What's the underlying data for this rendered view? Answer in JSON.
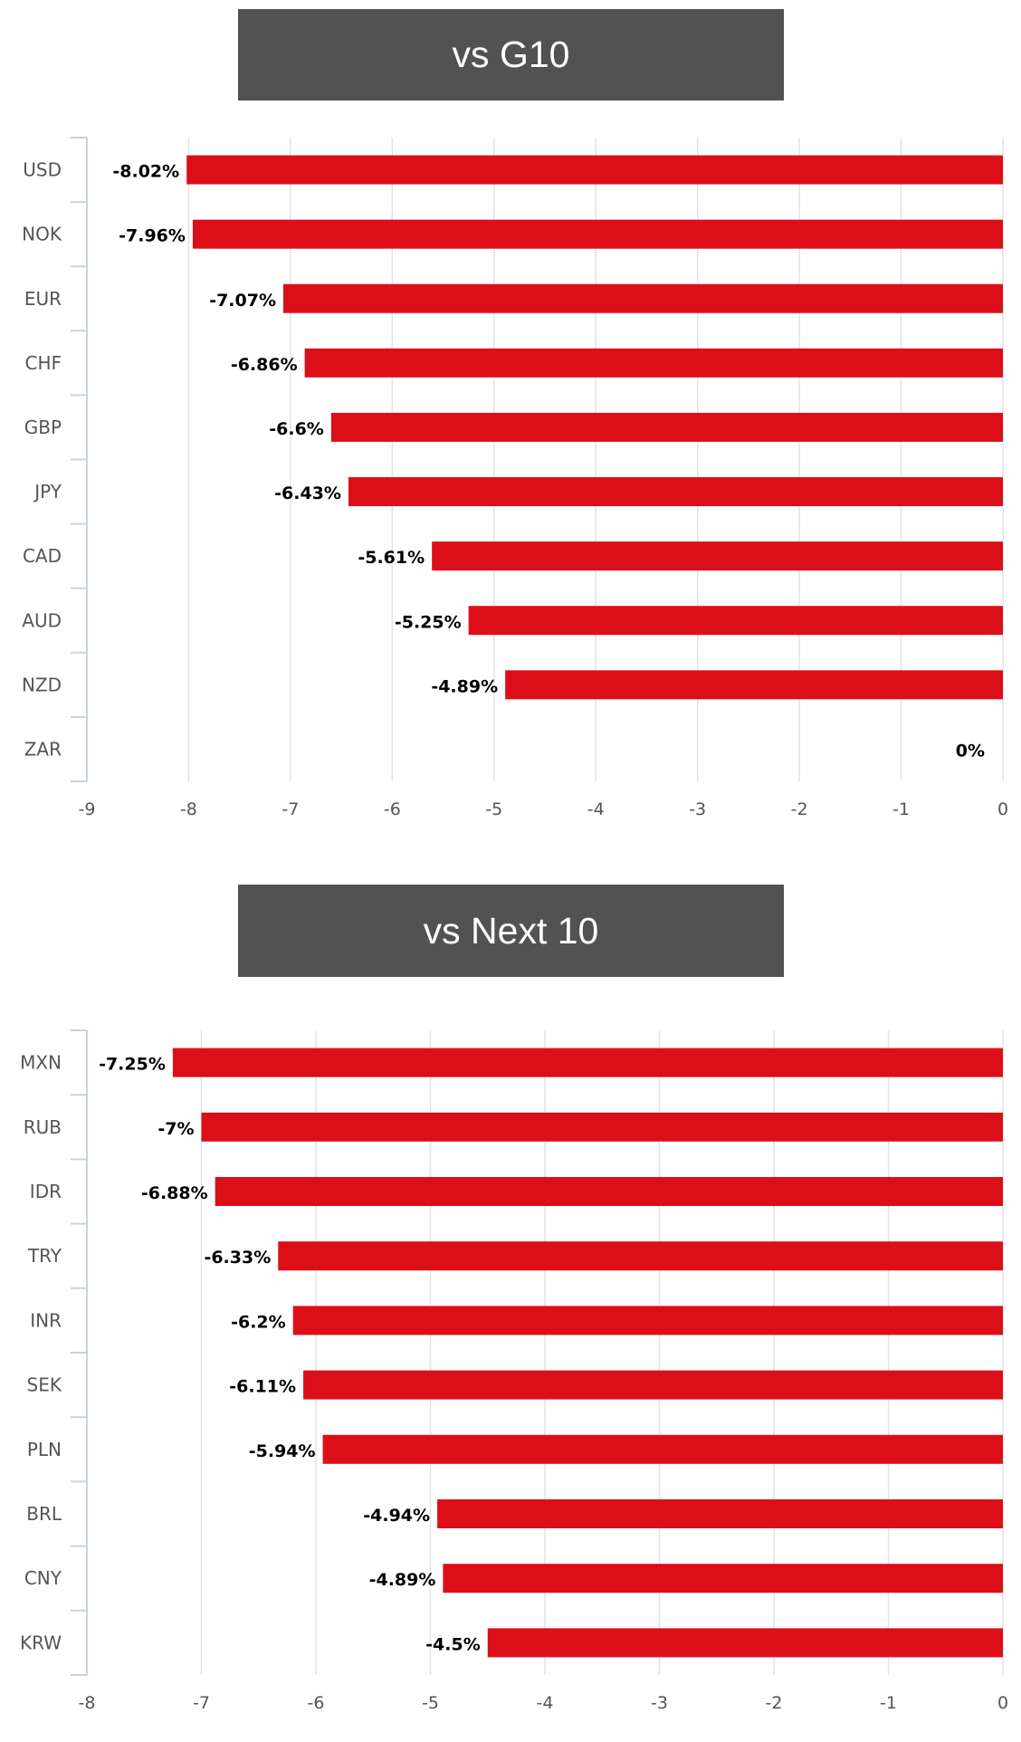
{
  "colors": {
    "bar": "#DC0F19",
    "title_bg": "#525252",
    "grid": "#E0E3E8",
    "axis": "#C8D2E0"
  },
  "chart_data": [
    {
      "type": "bar",
      "orientation": "horizontal",
      "title": "vs G10",
      "categories": [
        "USD",
        "NOK",
        "EUR",
        "CHF",
        "GBP",
        "JPY",
        "CAD",
        "AUD",
        "NZD",
        "ZAR"
      ],
      "values": [
        -8.02,
        -7.96,
        -7.07,
        -6.86,
        -6.6,
        -6.43,
        -5.61,
        -5.25,
        -4.89,
        0
      ],
      "data_labels": [
        "-8.02%",
        "-7.96%",
        "-7.07%",
        "-6.86%",
        "-6.6%",
        "-6.43%",
        "-5.61%",
        "-5.25%",
        "-4.89%",
        "0%"
      ],
      "xlim": [
        -9,
        0
      ],
      "xticks": [
        "-9",
        "-8",
        "-7",
        "-6",
        "-5",
        "-4",
        "-3",
        "-2",
        "-1",
        "0"
      ],
      "grid": true
    },
    {
      "type": "bar",
      "orientation": "horizontal",
      "title": "vs Next 10",
      "categories": [
        "MXN",
        "RUB",
        "IDR",
        "TRY",
        "INR",
        "SEK",
        "PLN",
        "BRL",
        "CNY",
        "KRW"
      ],
      "values": [
        -7.25,
        -7,
        -6.88,
        -6.33,
        -6.2,
        -6.11,
        -5.94,
        -4.94,
        -4.89,
        -4.5
      ],
      "data_labels": [
        "-7.25%",
        "-7%",
        "-6.88%",
        "-6.33%",
        "-6.2%",
        "-6.11%",
        "-5.94%",
        "-4.94%",
        "-4.89%",
        "-4.5%"
      ],
      "xlim": [
        -8,
        0
      ],
      "xticks": [
        "-8",
        "-7",
        "-6",
        "-5",
        "-4",
        "-3",
        "-2",
        "-1",
        "0"
      ],
      "grid": true
    }
  ]
}
